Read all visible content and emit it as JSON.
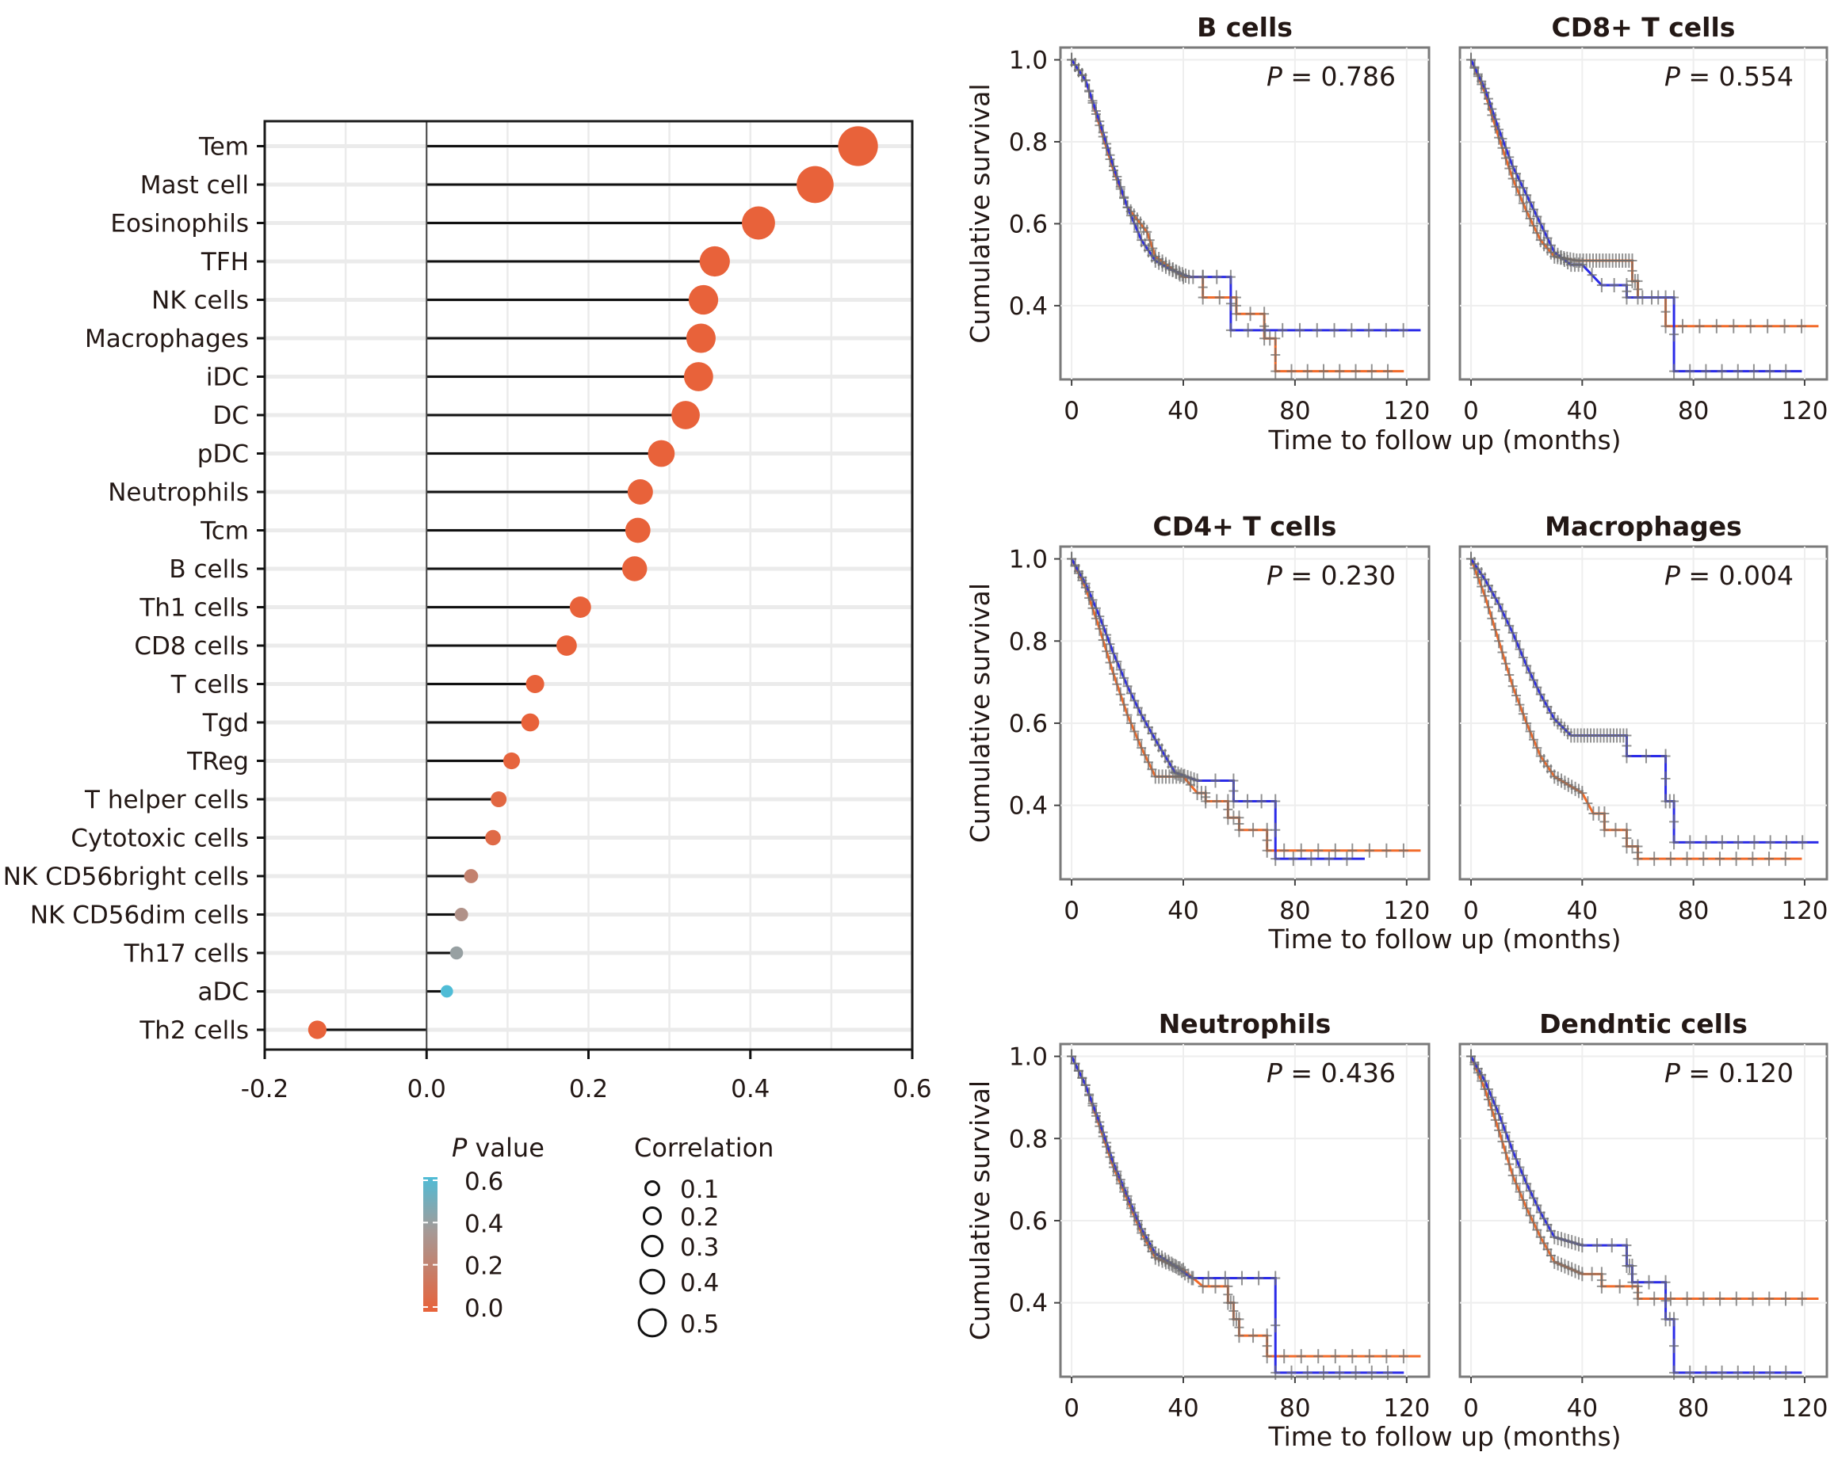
{
  "chart_data": [
    {
      "type": "lollipop",
      "title": "",
      "xlabel": "",
      "ylabel": "",
      "xlim": [
        -0.2,
        0.6
      ],
      "xticks": [
        "-0.2",
        "0.0",
        "0.2",
        "0.4",
        "0.6"
      ],
      "xtick_values": [
        -0.2,
        0.0,
        0.2,
        0.4,
        0.6
      ],
      "grid": true,
      "categories": [
        "Tem",
        "Mast cell",
        "Eosinophils",
        "TFH",
        "NK cells",
        "Macrophages",
        "iDC",
        "DC",
        "pDC",
        "Neutrophils",
        "Tcm",
        "B cells",
        "Th1 cells",
        "CD8 cells",
        "T cells",
        "Tgd",
        "TReg",
        "T helper cells",
        "Cytotoxic cells",
        "NK CD56bright cells",
        "NK CD56dim cells",
        "Th17 cells",
        "aDC",
        "Th2 cells"
      ],
      "values": [
        0.533,
        0.48,
        0.41,
        0.356,
        0.342,
        0.339,
        0.336,
        0.32,
        0.29,
        0.264,
        0.261,
        0.257,
        0.19,
        0.173,
        0.134,
        0.128,
        0.105,
        0.089,
        0.082,
        0.055,
        0.043,
        0.037,
        0.025,
        -0.135
      ],
      "p_values": [
        0.0,
        0.0,
        0.0,
        0.0,
        0.0,
        0.0,
        0.0,
        0.0,
        0.0,
        0.0,
        0.0,
        0.0,
        0.0,
        0.0,
        0.0,
        0.0,
        0.01,
        0.03,
        0.05,
        0.2,
        0.3,
        0.4,
        0.6,
        0.0
      ],
      "legend": {
        "color": {
          "title_italic": "P",
          "title_rest": " value",
          "ticks": [
            "0.6",
            "0.4",
            "0.2",
            "0.0"
          ],
          "tick_values": [
            0.6,
            0.4,
            0.2,
            0.0
          ],
          "low_color": "#E8623A",
          "mid_color": "#9E9E9E",
          "high_color": "#4FBCD6"
        },
        "size": {
          "title": "Correlation",
          "labels": [
            "0.1",
            "0.2",
            "0.3",
            "0.4",
            "0.5"
          ],
          "values": [
            0.1,
            0.2,
            0.3,
            0.4,
            0.5
          ]
        },
        "placement": "bottom"
      }
    },
    {
      "type": "line",
      "subtype": "kaplan-meier",
      "shared": {
        "ylabel": "Cumulative survival",
        "xlabel": "Time to follow up (months)",
        "xticks": [
          "0",
          "40",
          "80",
          "120"
        ],
        "xtick_values": [
          0,
          40,
          80,
          120
        ],
        "yticks": [
          "1.0",
          "0.8",
          "0.6",
          "0.4"
        ],
        "ytick_values": [
          1.0,
          0.8,
          0.6,
          0.4
        ],
        "xlim": [
          -4,
          128
        ],
        "ylim": [
          0.22,
          1.03
        ],
        "series_colors": {
          "high": "#2B2BE8",
          "low": "#F26B2A",
          "censor": "#6E6E6E"
        },
        "p_prefix": "P",
        "p_eq": " = "
      },
      "panels": [
        {
          "title": "B cells",
          "p": "0.786",
          "blue": [
            [
              0,
              1.0
            ],
            [
              5,
              0.95
            ],
            [
              10,
              0.85
            ],
            [
              15,
              0.74
            ],
            [
              20,
              0.64
            ],
            [
              25,
              0.56
            ],
            [
              30,
              0.51
            ],
            [
              35,
              0.49
            ],
            [
              42,
              0.47
            ],
            [
              57,
              0.47
            ],
            [
              57,
              0.34
            ],
            [
              125,
              0.34
            ]
          ],
          "orange": [
            [
              0,
              1.0
            ],
            [
              5,
              0.95
            ],
            [
              10,
              0.84
            ],
            [
              15,
              0.73
            ],
            [
              20,
              0.64
            ],
            [
              27,
              0.58
            ],
            [
              30,
              0.52
            ],
            [
              40,
              0.47
            ],
            [
              47,
              0.47
            ],
            [
              47,
              0.42
            ],
            [
              59,
              0.42
            ],
            [
              59,
              0.38
            ],
            [
              69,
              0.38
            ],
            [
              69,
              0.32
            ],
            [
              73,
              0.32
            ],
            [
              73,
              0.24
            ],
            [
              119,
              0.24
            ]
          ]
        },
        {
          "title": "CD8+ T cells",
          "p": "0.554",
          "blue": [
            [
              0,
              1.0
            ],
            [
              5,
              0.93
            ],
            [
              10,
              0.83
            ],
            [
              15,
              0.74
            ],
            [
              20,
              0.67
            ],
            [
              25,
              0.6
            ],
            [
              30,
              0.53
            ],
            [
              36,
              0.5
            ],
            [
              40,
              0.5
            ],
            [
              47,
              0.45
            ],
            [
              56,
              0.45
            ],
            [
              56,
              0.42
            ],
            [
              73,
              0.42
            ],
            [
              73,
              0.24
            ],
            [
              119,
              0.24
            ]
          ],
          "orange": [
            [
              0,
              1.0
            ],
            [
              5,
              0.92
            ],
            [
              10,
              0.81
            ],
            [
              15,
              0.71
            ],
            [
              20,
              0.63
            ],
            [
              25,
              0.56
            ],
            [
              30,
              0.52
            ],
            [
              38,
              0.51
            ],
            [
              58,
              0.51
            ],
            [
              58,
              0.46
            ],
            [
              60,
              0.46
            ],
            [
              60,
              0.42
            ],
            [
              70,
              0.42
            ],
            [
              70,
              0.35
            ],
            [
              125,
              0.35
            ]
          ]
        },
        {
          "title": "CD4+ T cells",
          "p": "0.230",
          "blue": [
            [
              0,
              1.0
            ],
            [
              5,
              0.94
            ],
            [
              10,
              0.86
            ],
            [
              15,
              0.77
            ],
            [
              20,
              0.69
            ],
            [
              25,
              0.62
            ],
            [
              30,
              0.56
            ],
            [
              37,
              0.48
            ],
            [
              45,
              0.46
            ],
            [
              58,
              0.46
            ],
            [
              58,
              0.41
            ],
            [
              73,
              0.41
            ],
            [
              73,
              0.27
            ],
            [
              105,
              0.27
            ]
          ],
          "orange": [
            [
              0,
              1.0
            ],
            [
              5,
              0.93
            ],
            [
              10,
              0.83
            ],
            [
              15,
              0.72
            ],
            [
              20,
              0.62
            ],
            [
              25,
              0.54
            ],
            [
              30,
              0.47
            ],
            [
              40,
              0.47
            ],
            [
              45,
              0.43
            ],
            [
              48,
              0.43
            ],
            [
              48,
              0.41
            ],
            [
              56,
              0.41
            ],
            [
              56,
              0.37
            ],
            [
              60,
              0.37
            ],
            [
              60,
              0.34
            ],
            [
              70,
              0.34
            ],
            [
              70,
              0.29
            ],
            [
              125,
              0.29
            ]
          ]
        },
        {
          "title": "Macrophages",
          "p": "0.004",
          "blue": [
            [
              0,
              1.0
            ],
            [
              5,
              0.95
            ],
            [
              10,
              0.89
            ],
            [
              15,
              0.82
            ],
            [
              20,
              0.74
            ],
            [
              25,
              0.67
            ],
            [
              30,
              0.61
            ],
            [
              36,
              0.57
            ],
            [
              56,
              0.57
            ],
            [
              56,
              0.52
            ],
            [
              70,
              0.52
            ],
            [
              70,
              0.41
            ],
            [
              73,
              0.41
            ],
            [
              73,
              0.31
            ],
            [
              125,
              0.31
            ]
          ],
          "orange": [
            [
              0,
              1.0
            ],
            [
              5,
              0.91
            ],
            [
              10,
              0.8
            ],
            [
              15,
              0.69
            ],
            [
              20,
              0.6
            ],
            [
              25,
              0.52
            ],
            [
              30,
              0.47
            ],
            [
              40,
              0.43
            ],
            [
              44,
              0.38
            ],
            [
              48,
              0.38
            ],
            [
              48,
              0.34
            ],
            [
              56,
              0.34
            ],
            [
              56,
              0.3
            ],
            [
              60,
              0.3
            ],
            [
              60,
              0.27
            ],
            [
              119,
              0.27
            ]
          ]
        },
        {
          "title": "Neutrophils",
          "p": "0.436",
          "blue": [
            [
              0,
              1.0
            ],
            [
              5,
              0.93
            ],
            [
              10,
              0.84
            ],
            [
              15,
              0.74
            ],
            [
              20,
              0.66
            ],
            [
              25,
              0.58
            ],
            [
              30,
              0.52
            ],
            [
              37,
              0.49
            ],
            [
              43,
              0.46
            ],
            [
              73,
              0.46
            ],
            [
              73,
              0.23
            ],
            [
              119,
              0.23
            ]
          ],
          "orange": [
            [
              0,
              1.0
            ],
            [
              5,
              0.93
            ],
            [
              10,
              0.83
            ],
            [
              15,
              0.73
            ],
            [
              20,
              0.65
            ],
            [
              25,
              0.57
            ],
            [
              30,
              0.51
            ],
            [
              40,
              0.48
            ],
            [
              47,
              0.44
            ],
            [
              56,
              0.44
            ],
            [
              56,
              0.4
            ],
            [
              58,
              0.4
            ],
            [
              58,
              0.36
            ],
            [
              60,
              0.36
            ],
            [
              60,
              0.32
            ],
            [
              70,
              0.32
            ],
            [
              70,
              0.27
            ],
            [
              125,
              0.27
            ]
          ]
        },
        {
          "title": "Dendntic cells",
          "p": "0.120",
          "blue": [
            [
              0,
              1.0
            ],
            [
              5,
              0.94
            ],
            [
              10,
              0.86
            ],
            [
              15,
              0.77
            ],
            [
              20,
              0.69
            ],
            [
              25,
              0.62
            ],
            [
              30,
              0.56
            ],
            [
              40,
              0.54
            ],
            [
              56,
              0.54
            ],
            [
              56,
              0.49
            ],
            [
              58,
              0.49
            ],
            [
              58,
              0.45
            ],
            [
              70,
              0.45
            ],
            [
              70,
              0.36
            ],
            [
              73,
              0.36
            ],
            [
              73,
              0.23
            ],
            [
              119,
              0.23
            ]
          ],
          "orange": [
            [
              0,
              1.0
            ],
            [
              5,
              0.92
            ],
            [
              10,
              0.82
            ],
            [
              15,
              0.71
            ],
            [
              20,
              0.63
            ],
            [
              25,
              0.56
            ],
            [
              30,
              0.5
            ],
            [
              40,
              0.47
            ],
            [
              47,
              0.47
            ],
            [
              47,
              0.44
            ],
            [
              60,
              0.44
            ],
            [
              60,
              0.41
            ],
            [
              125,
              0.41
            ]
          ]
        }
      ]
    }
  ]
}
